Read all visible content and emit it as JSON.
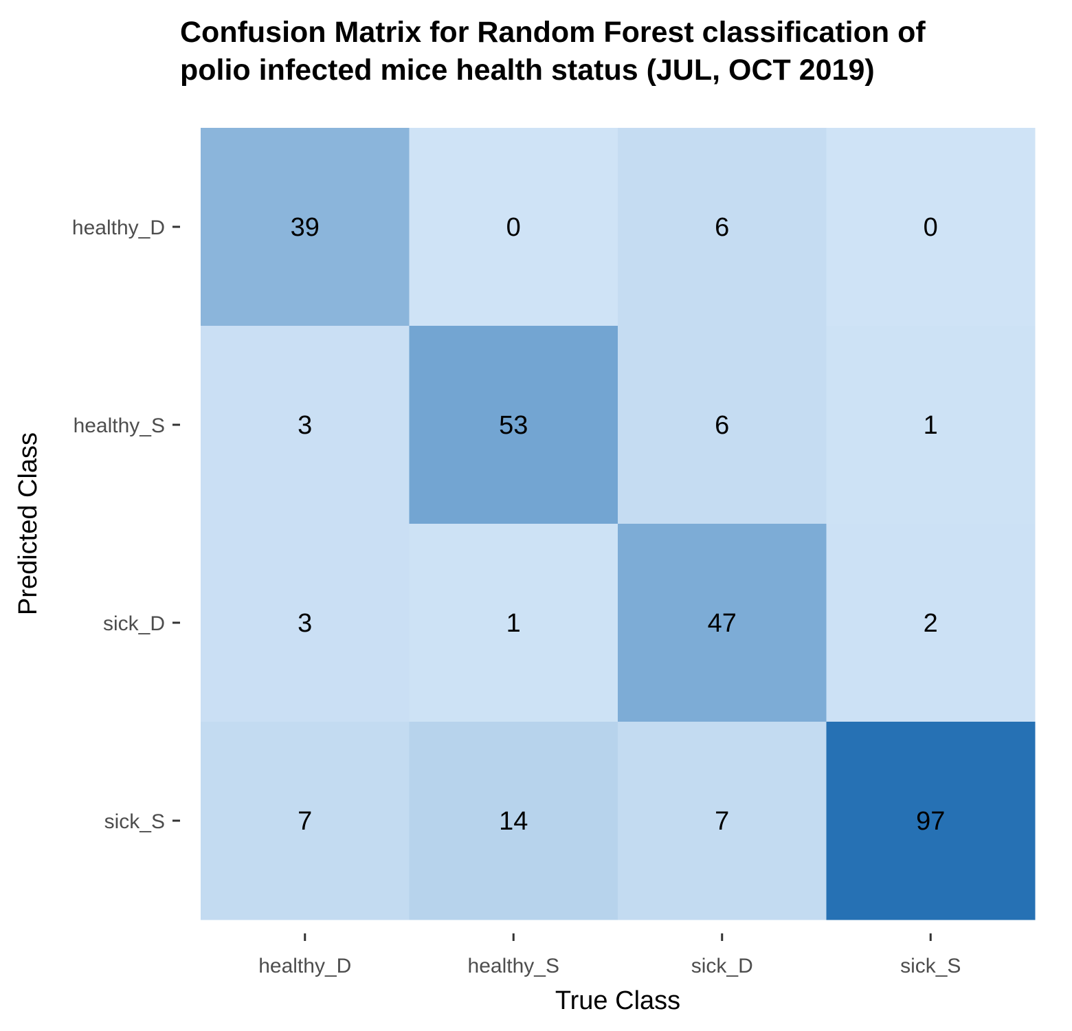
{
  "chart_data": {
    "type": "heatmap",
    "title_lines": [
      "Confusion Matrix for Random Forest classification of",
      "polio infected mice health status (JUL, OCT 2019)"
    ],
    "xlabel": "True Class",
    "ylabel": "Predicted Class",
    "x_categories": [
      "healthy_D",
      "healthy_S",
      "sick_D",
      "sick_S"
    ],
    "y_categories": [
      "healthy_D",
      "healthy_S",
      "sick_D",
      "sick_S"
    ],
    "values": [
      [
        39,
        0,
        6,
        0
      ],
      [
        3,
        53,
        6,
        1
      ],
      [
        3,
        1,
        47,
        2
      ],
      [
        7,
        14,
        7,
        97
      ]
    ],
    "color_scale": {
      "low": "#cfe3f6",
      "high": "#2671b4",
      "min": 0,
      "max": 97
    },
    "legend": "none",
    "grid": false
  }
}
